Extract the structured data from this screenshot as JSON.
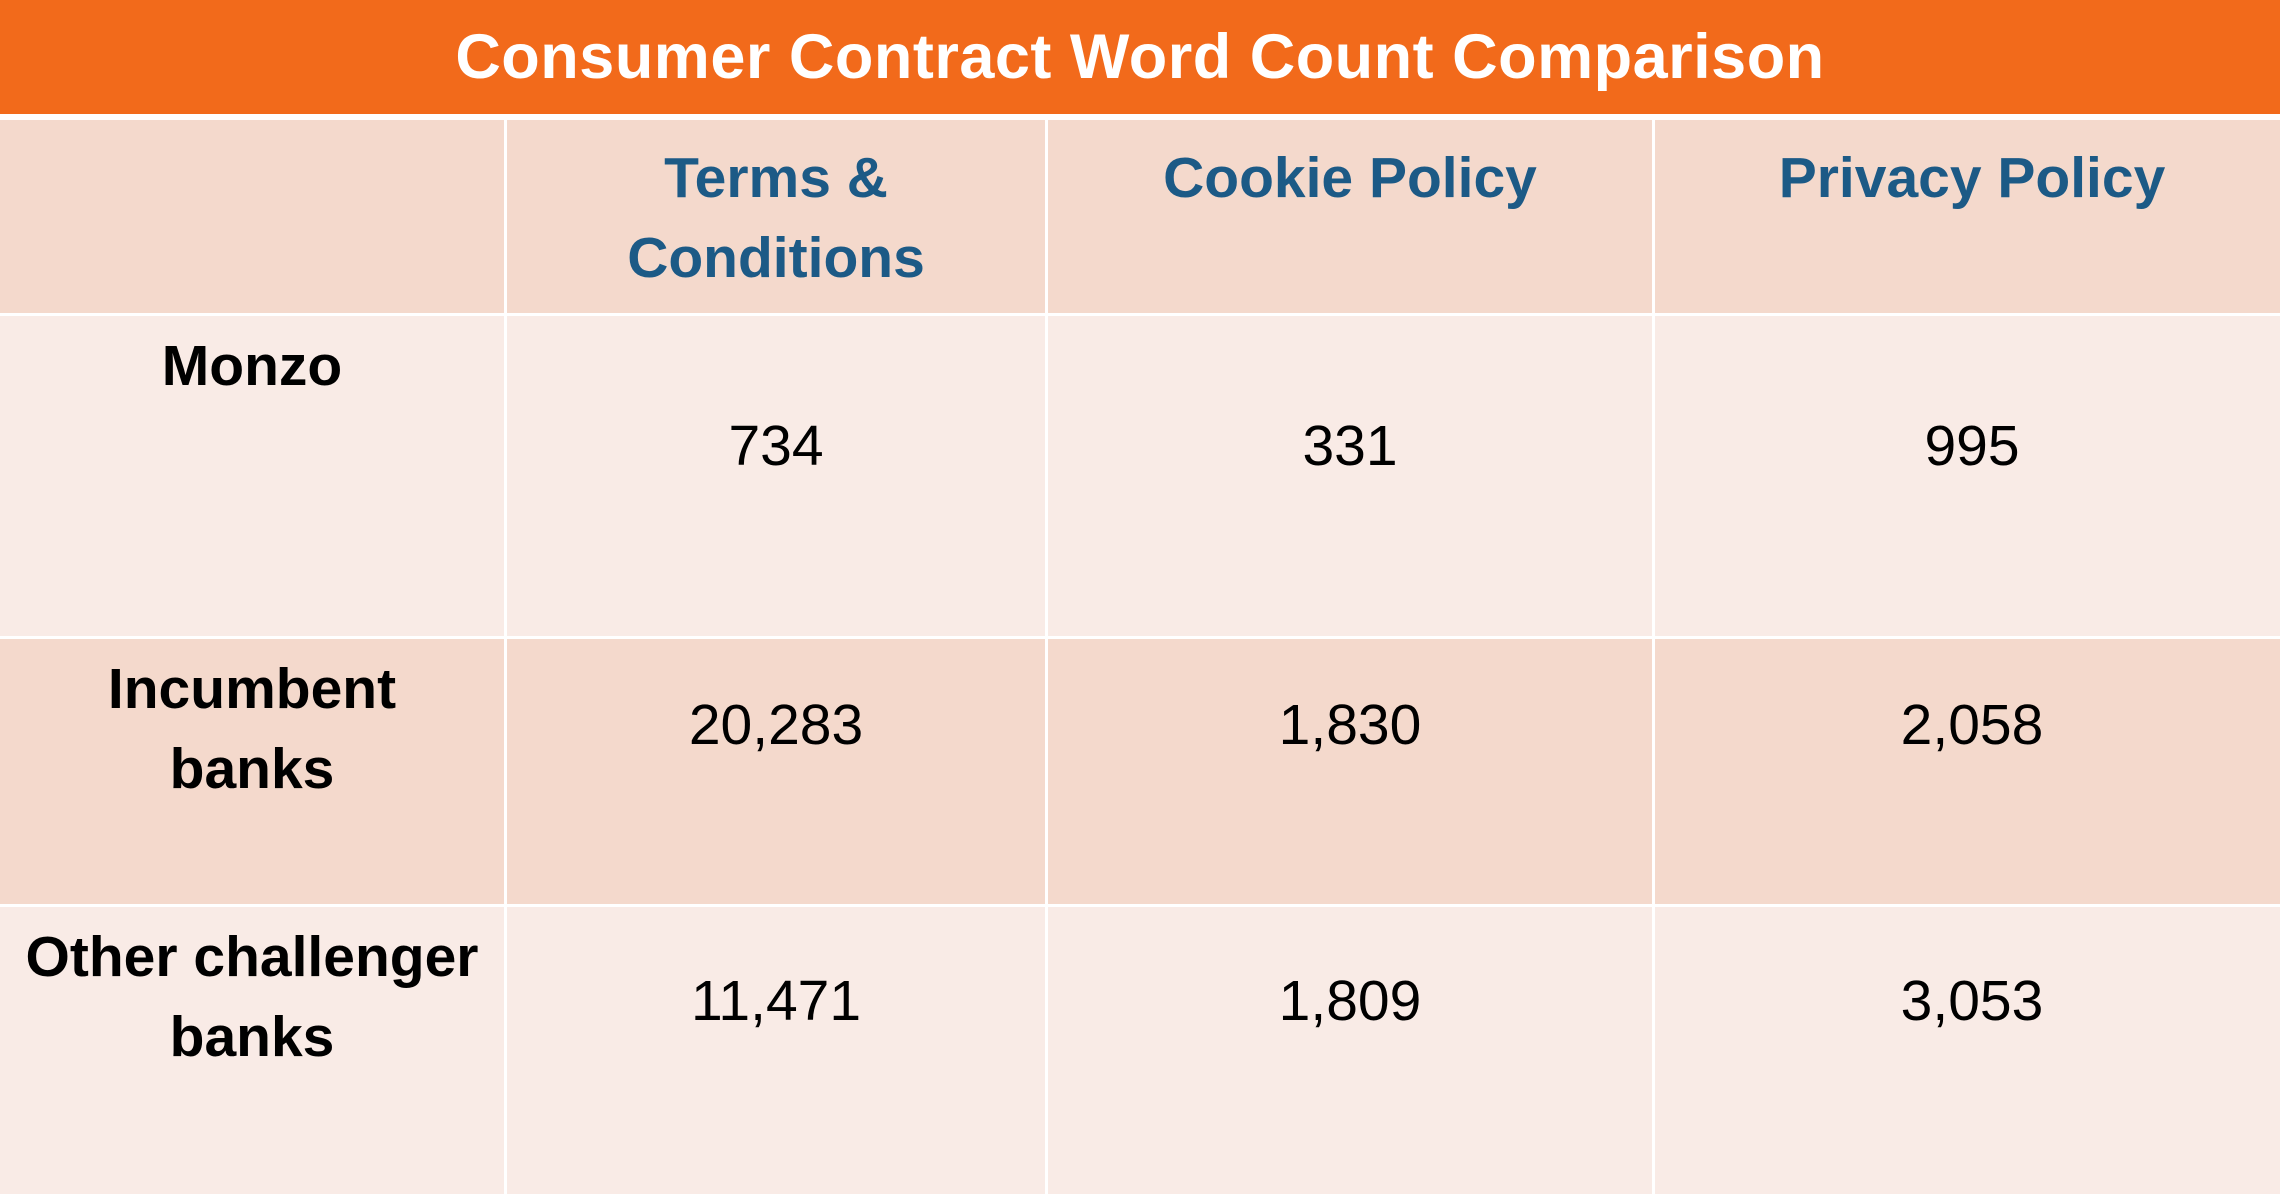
{
  "title": "Consumer Contract Word Count Comparison",
  "colors": {
    "title_bar": "#f26a1b",
    "header_text": "#1c5a86",
    "row_dark": "#f4d9cc",
    "row_light": "#f9ebe6"
  },
  "chart_data": {
    "type": "table",
    "title": "Consumer Contract Word Count Comparison",
    "columns": [
      "",
      "Terms & Conditions",
      "Cookie Policy",
      "Privacy Policy"
    ],
    "rows": [
      {
        "label": "Monzo",
        "values": [
          "734",
          "331",
          "995"
        ]
      },
      {
        "label": "Incumbent banks",
        "values": [
          "20,283",
          "1,830",
          "2,058"
        ]
      },
      {
        "label": "Other challenger banks",
        "values": [
          "11,471",
          "1,809",
          "3,053"
        ]
      }
    ]
  },
  "table": {
    "headers": {
      "terms_line1": "Terms &",
      "terms_line2": "Conditions",
      "cookie": "Cookie Policy",
      "privacy": "Privacy Policy"
    },
    "row_labels": {
      "monzo": "Monzo",
      "incumbent_line1": "Incumbent",
      "incumbent_line2": "banks",
      "other_line1": "Other challenger",
      "other_line2": "banks"
    }
  }
}
